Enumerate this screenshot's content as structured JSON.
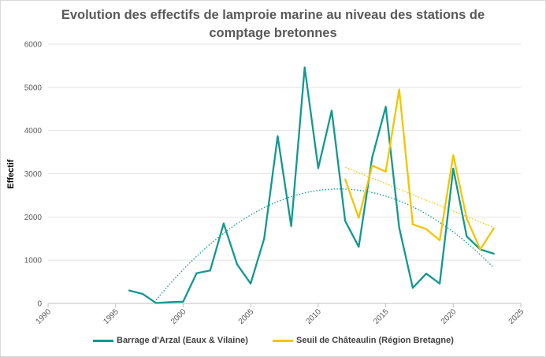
{
  "chart_data": {
    "type": "line",
    "title_line1": "Evolution des effectifs de lamproie marine au niveau des stations de",
    "title_line2": "comptage bretonnes",
    "xlabel": "",
    "ylabel": "Effectif",
    "xlim": [
      1990,
      2025
    ],
    "ylim": [
      0,
      6000
    ],
    "x_ticks": [
      1990,
      1995,
      2000,
      2005,
      2010,
      2015,
      2020,
      2025
    ],
    "y_ticks": [
      0,
      1000,
      2000,
      3000,
      4000,
      5000,
      6000
    ],
    "grid": "horizontal",
    "legend_position": "bottom",
    "series": [
      {
        "name": "Barrage d'Arzal (Eaux & Vilaine)",
        "color": "#13988f",
        "trendline": "polynomial",
        "trend_x_range": [
          1998,
          2023
        ],
        "points": [
          [
            1996,
            300
          ],
          [
            1997,
            220
          ],
          [
            1998,
            10
          ],
          [
            1999,
            30
          ],
          [
            2000,
            40
          ],
          [
            2001,
            700
          ],
          [
            2002,
            760
          ],
          [
            2003,
            1850
          ],
          [
            2004,
            900
          ],
          [
            2005,
            460
          ],
          [
            2006,
            1500
          ],
          [
            2007,
            3870
          ],
          [
            2008,
            1790
          ],
          [
            2009,
            5460
          ],
          [
            2010,
            3130
          ],
          [
            2011,
            4460
          ],
          [
            2012,
            1910
          ],
          [
            2013,
            1310
          ],
          [
            2014,
            3380
          ],
          [
            2015,
            4550
          ],
          [
            2016,
            1750
          ],
          [
            2017,
            360
          ],
          [
            2018,
            690
          ],
          [
            2019,
            460
          ],
          [
            2020,
            3120
          ],
          [
            2021,
            1550
          ],
          [
            2022,
            1250
          ],
          [
            2023,
            1150
          ]
        ]
      },
      {
        "name": "Seuil de Châteaulin (Région Bretagne)",
        "color": "#f5c400",
        "trendline": "linear",
        "trend_x_range": [
          2012,
          2023
        ],
        "points": [
          [
            2012,
            2870
          ],
          [
            2013,
            1980
          ],
          [
            2014,
            3190
          ],
          [
            2015,
            3050
          ],
          [
            2016,
            4950
          ],
          [
            2017,
            1830
          ],
          [
            2018,
            1720
          ],
          [
            2019,
            1460
          ],
          [
            2020,
            3430
          ],
          [
            2021,
            1960
          ],
          [
            2022,
            1250
          ],
          [
            2023,
            1740
          ]
        ]
      }
    ]
  }
}
